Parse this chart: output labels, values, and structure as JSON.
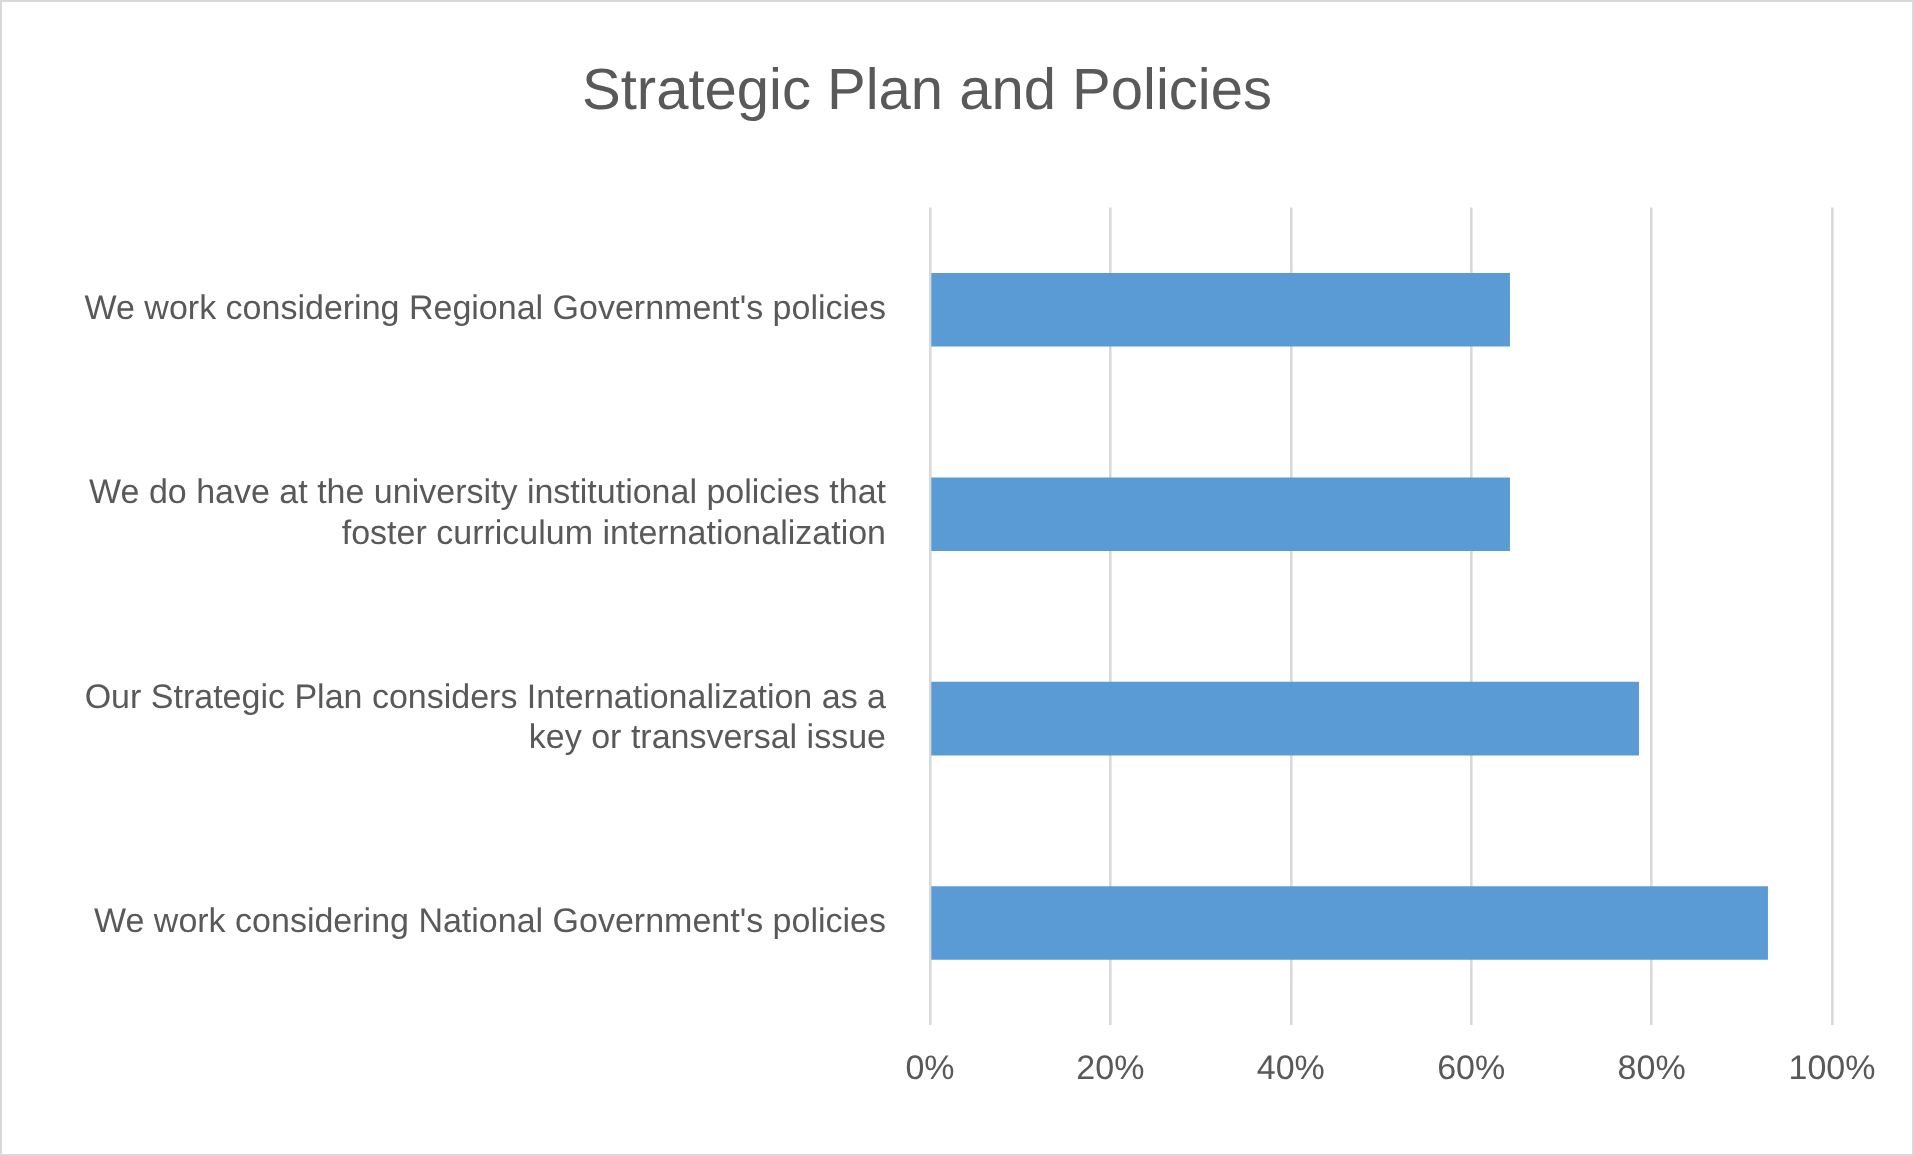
{
  "chart_data": {
    "type": "bar",
    "orientation": "horizontal",
    "title": "Strategic Plan and Policies",
    "categories": [
      "We work considering Regional Government's policies",
      "We do have at the university institutional policies that foster curriculum internationalization",
      "Our Strategic Plan considers Internationalization as a key or transversal issue",
      "We work considering National Government's policies"
    ],
    "values": [
      64.3,
      64.3,
      78.6,
      92.9
    ],
    "color": "#5b9bd5",
    "xlim": [
      0,
      100
    ],
    "xticks": [
      {
        "value": 0,
        "label": "0%"
      },
      {
        "value": 20,
        "label": "20%"
      },
      {
        "value": 40,
        "label": "40%"
      },
      {
        "value": 60,
        "label": "60%"
      },
      {
        "value": 80,
        "label": "80%"
      },
      {
        "value": 100,
        "label": "100%"
      }
    ],
    "grid": "x",
    "legend": false
  }
}
